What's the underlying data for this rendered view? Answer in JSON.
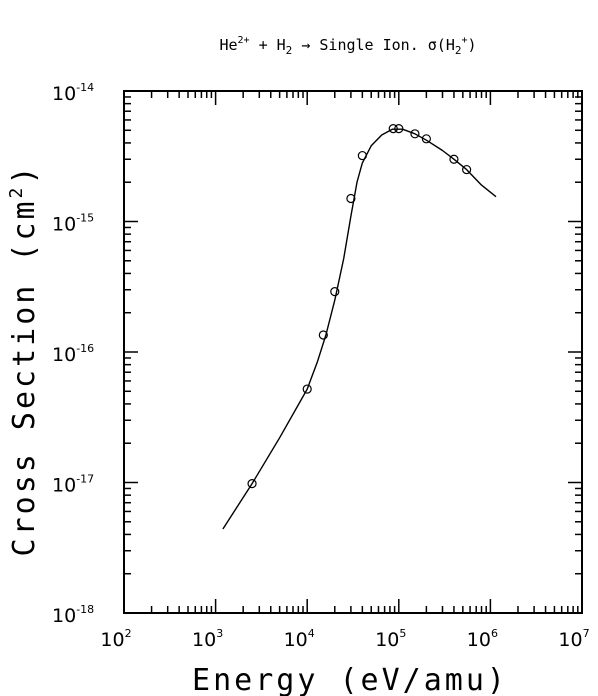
{
  "chart_data": {
    "type": "line",
    "title": "He²⁺ + H₂ → Single Ion. σ(H₂⁺)",
    "title_parts": {
      "he": "He",
      "he_charge": "2+",
      "plus_h": " + H",
      "h_sub": "2",
      "arrow_text": " → Single Ion. σ(H",
      "h2_sub": "2",
      "h2_charge": "+",
      "close": ")"
    },
    "xlabel": "Energy (eV/amu)",
    "ylabel": "Cross Section (cm",
    "ylabel_sup": "2",
    "ylabel_close": ")",
    "xscale": "log",
    "yscale": "log",
    "xlim": [
      100,
      10000000
    ],
    "ylim": [
      1e-18,
      1e-14
    ],
    "x_ticks": [
      {
        "base": "10",
        "exp": "2"
      },
      {
        "base": "10",
        "exp": "3"
      },
      {
        "base": "10",
        "exp": "4"
      },
      {
        "base": "10",
        "exp": "5"
      },
      {
        "base": "10",
        "exp": "6"
      },
      {
        "base": "10",
        "exp": "7"
      }
    ],
    "y_ticks": [
      {
        "base": "10",
        "exp": "-18"
      },
      {
        "base": "10",
        "exp": "-17"
      },
      {
        "base": "10",
        "exp": "-16"
      },
      {
        "base": "10",
        "exp": "-15"
      },
      {
        "base": "10",
        "exp": "-14"
      }
    ],
    "grid": false,
    "series": [
      {
        "style": "line",
        "points": [
          [
            1200,
            4.4e-18
          ],
          [
            2500,
            9.8e-18
          ],
          [
            5000,
            2.2e-17
          ],
          [
            10000,
            5.2e-17
          ],
          [
            13000,
            8.5e-17
          ],
          [
            16000,
            1.35e-16
          ],
          [
            20000,
            2.5e-16
          ],
          [
            25000,
            5.2e-16
          ],
          [
            30000,
            1.1e-15
          ],
          [
            35000,
            2e-15
          ],
          [
            40000,
            2.8e-15
          ],
          [
            50000,
            3.8e-15
          ],
          [
            65000,
            4.6e-15
          ],
          [
            85000,
            5.1e-15
          ],
          [
            110000,
            5.1e-15
          ],
          [
            150000,
            4.7e-15
          ],
          [
            200000,
            4.2e-15
          ],
          [
            300000,
            3.5e-15
          ],
          [
            400000,
            3e-15
          ],
          [
            550000,
            2.5e-15
          ],
          [
            800000,
            1.9e-15
          ],
          [
            1150000,
            1.55e-15
          ]
        ]
      },
      {
        "style": "open-circles",
        "points": [
          [
            2500,
            9.8e-18
          ],
          [
            10000,
            5.2e-17
          ],
          [
            15000,
            1.35e-16
          ],
          [
            20000,
            2.9e-16
          ],
          [
            30000,
            1.5e-15
          ],
          [
            40000,
            3.2e-15
          ],
          [
            87000,
            5.15e-15
          ],
          [
            100000,
            5.15e-15
          ],
          [
            150000,
            4.7e-15
          ],
          [
            200000,
            4.3e-15
          ],
          [
            400000,
            3e-15
          ],
          [
            550000,
            2.5e-15
          ]
        ]
      }
    ]
  }
}
